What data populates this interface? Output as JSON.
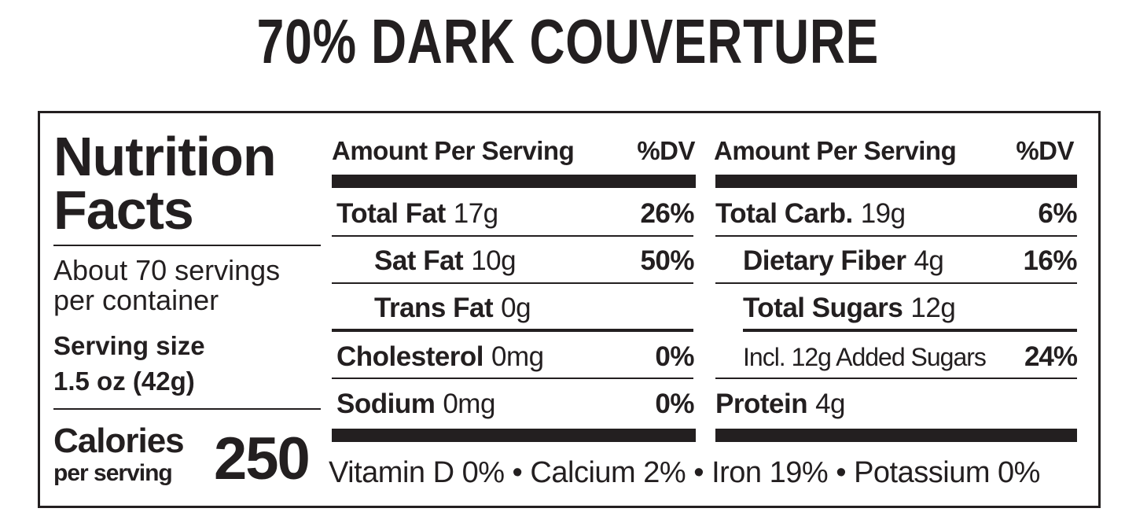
{
  "title": "70% DARK COUVERTURE",
  "label": {
    "heading": {
      "line1": "Nutrition",
      "line2": "Facts"
    },
    "servings": {
      "line1": "About 70 servings",
      "line2": "per container"
    },
    "serving_size": {
      "label": "Serving size",
      "value": "1.5 oz (42g)"
    },
    "calories": {
      "label": "Calories",
      "sublabel": "per serving",
      "value": 250
    },
    "left_column": {
      "header": {
        "amount": "Amount Per Serving",
        "dv": "%DV"
      },
      "rows": [
        {
          "name": "Total Fat",
          "amount": "17g",
          "dv": "26%"
        },
        {
          "name": "Sat Fat",
          "amount": "10g",
          "dv": "50%"
        },
        {
          "name": "Trans Fat",
          "amount": "0g"
        },
        {
          "name": "Cholesterol",
          "amount": "0mg",
          "dv": "0%"
        },
        {
          "name": "Sodium",
          "amount": "0mg",
          "dv": "0%"
        }
      ]
    },
    "right_column": {
      "header": {
        "amount": "Amount Per Serving",
        "dv": "%DV"
      },
      "rows": [
        {
          "name": "Total Carb.",
          "amount": "19g",
          "dv": "6%"
        },
        {
          "name": "Dietary Fiber",
          "amount": "4g",
          "dv": "16%"
        },
        {
          "name": "Total Sugars",
          "amount": "12g"
        },
        {
          "name": "Incl. 12g Added Sugars",
          "dv": "24%"
        },
        {
          "name": "Protein",
          "amount": "4g"
        }
      ]
    },
    "footer": "Vitamin D 0% • Calcium 2% • Iron 19% • Potassium 0%"
  }
}
